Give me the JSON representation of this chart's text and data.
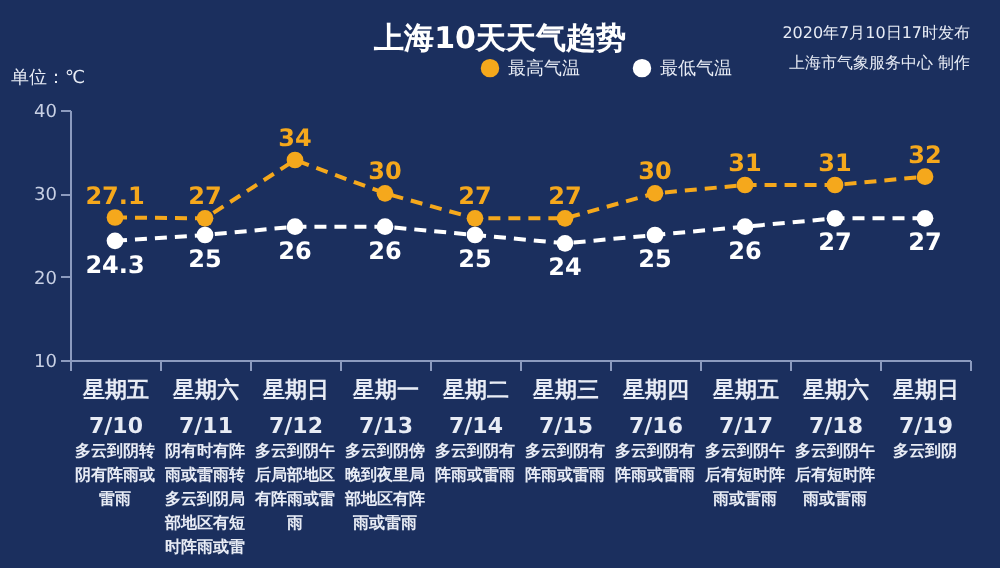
{
  "chart_data": {
    "type": "line",
    "title": "上海10天天气趋势",
    "ylabel": "单位：℃",
    "categories": [
      "星期五\n7/10",
      "星期六\n7/11",
      "星期日\n7/12",
      "星期一\n7/13",
      "星期二\n7/14",
      "星期三\n7/15",
      "星期四\n7/16",
      "星期五\n7/17",
      "星期六\n7/18",
      "星期日\n7/19"
    ],
    "series": [
      {
        "name": "最高气温",
        "color": "#f5a81c",
        "values": [
          27.1,
          27,
          34,
          30,
          27,
          27,
          30,
          31,
          31,
          32
        ]
      },
      {
        "name": "最低气温",
        "color": "#ffffff",
        "values": [
          24.3,
          25,
          26,
          26,
          25,
          24,
          25,
          26,
          27,
          27
        ]
      }
    ],
    "ylim": [
      10,
      40
    ],
    "yticks": [
      10,
      20,
      30,
      40
    ],
    "grid": false,
    "legend": "top",
    "marker": "circle",
    "line_style": "dashed",
    "data_labels": true,
    "annotations": [
      "2020年7月10日17时发布",
      "上海市气象服务中心 制作",
      "多云到阴转阴有阵雨或雷雨",
      "阴有时有阵雨或雷雨转多云到阴局部地区有短时阵雨或雷",
      "多云到阴午后局部地区有阵雨或雷雨",
      "多云到阴傍晚到夜里局部地区有阵雨或雷雨",
      "多云到阴有阵雨或雷雨",
      "多云到阴有阵雨或雷雨",
      "多云到阴有阵雨或雷雨",
      "多云到阴午后有短时阵雨或雷雨",
      "多云到阴午后有短时阵雨或雷雨",
      "多云到阴"
    ]
  }
}
